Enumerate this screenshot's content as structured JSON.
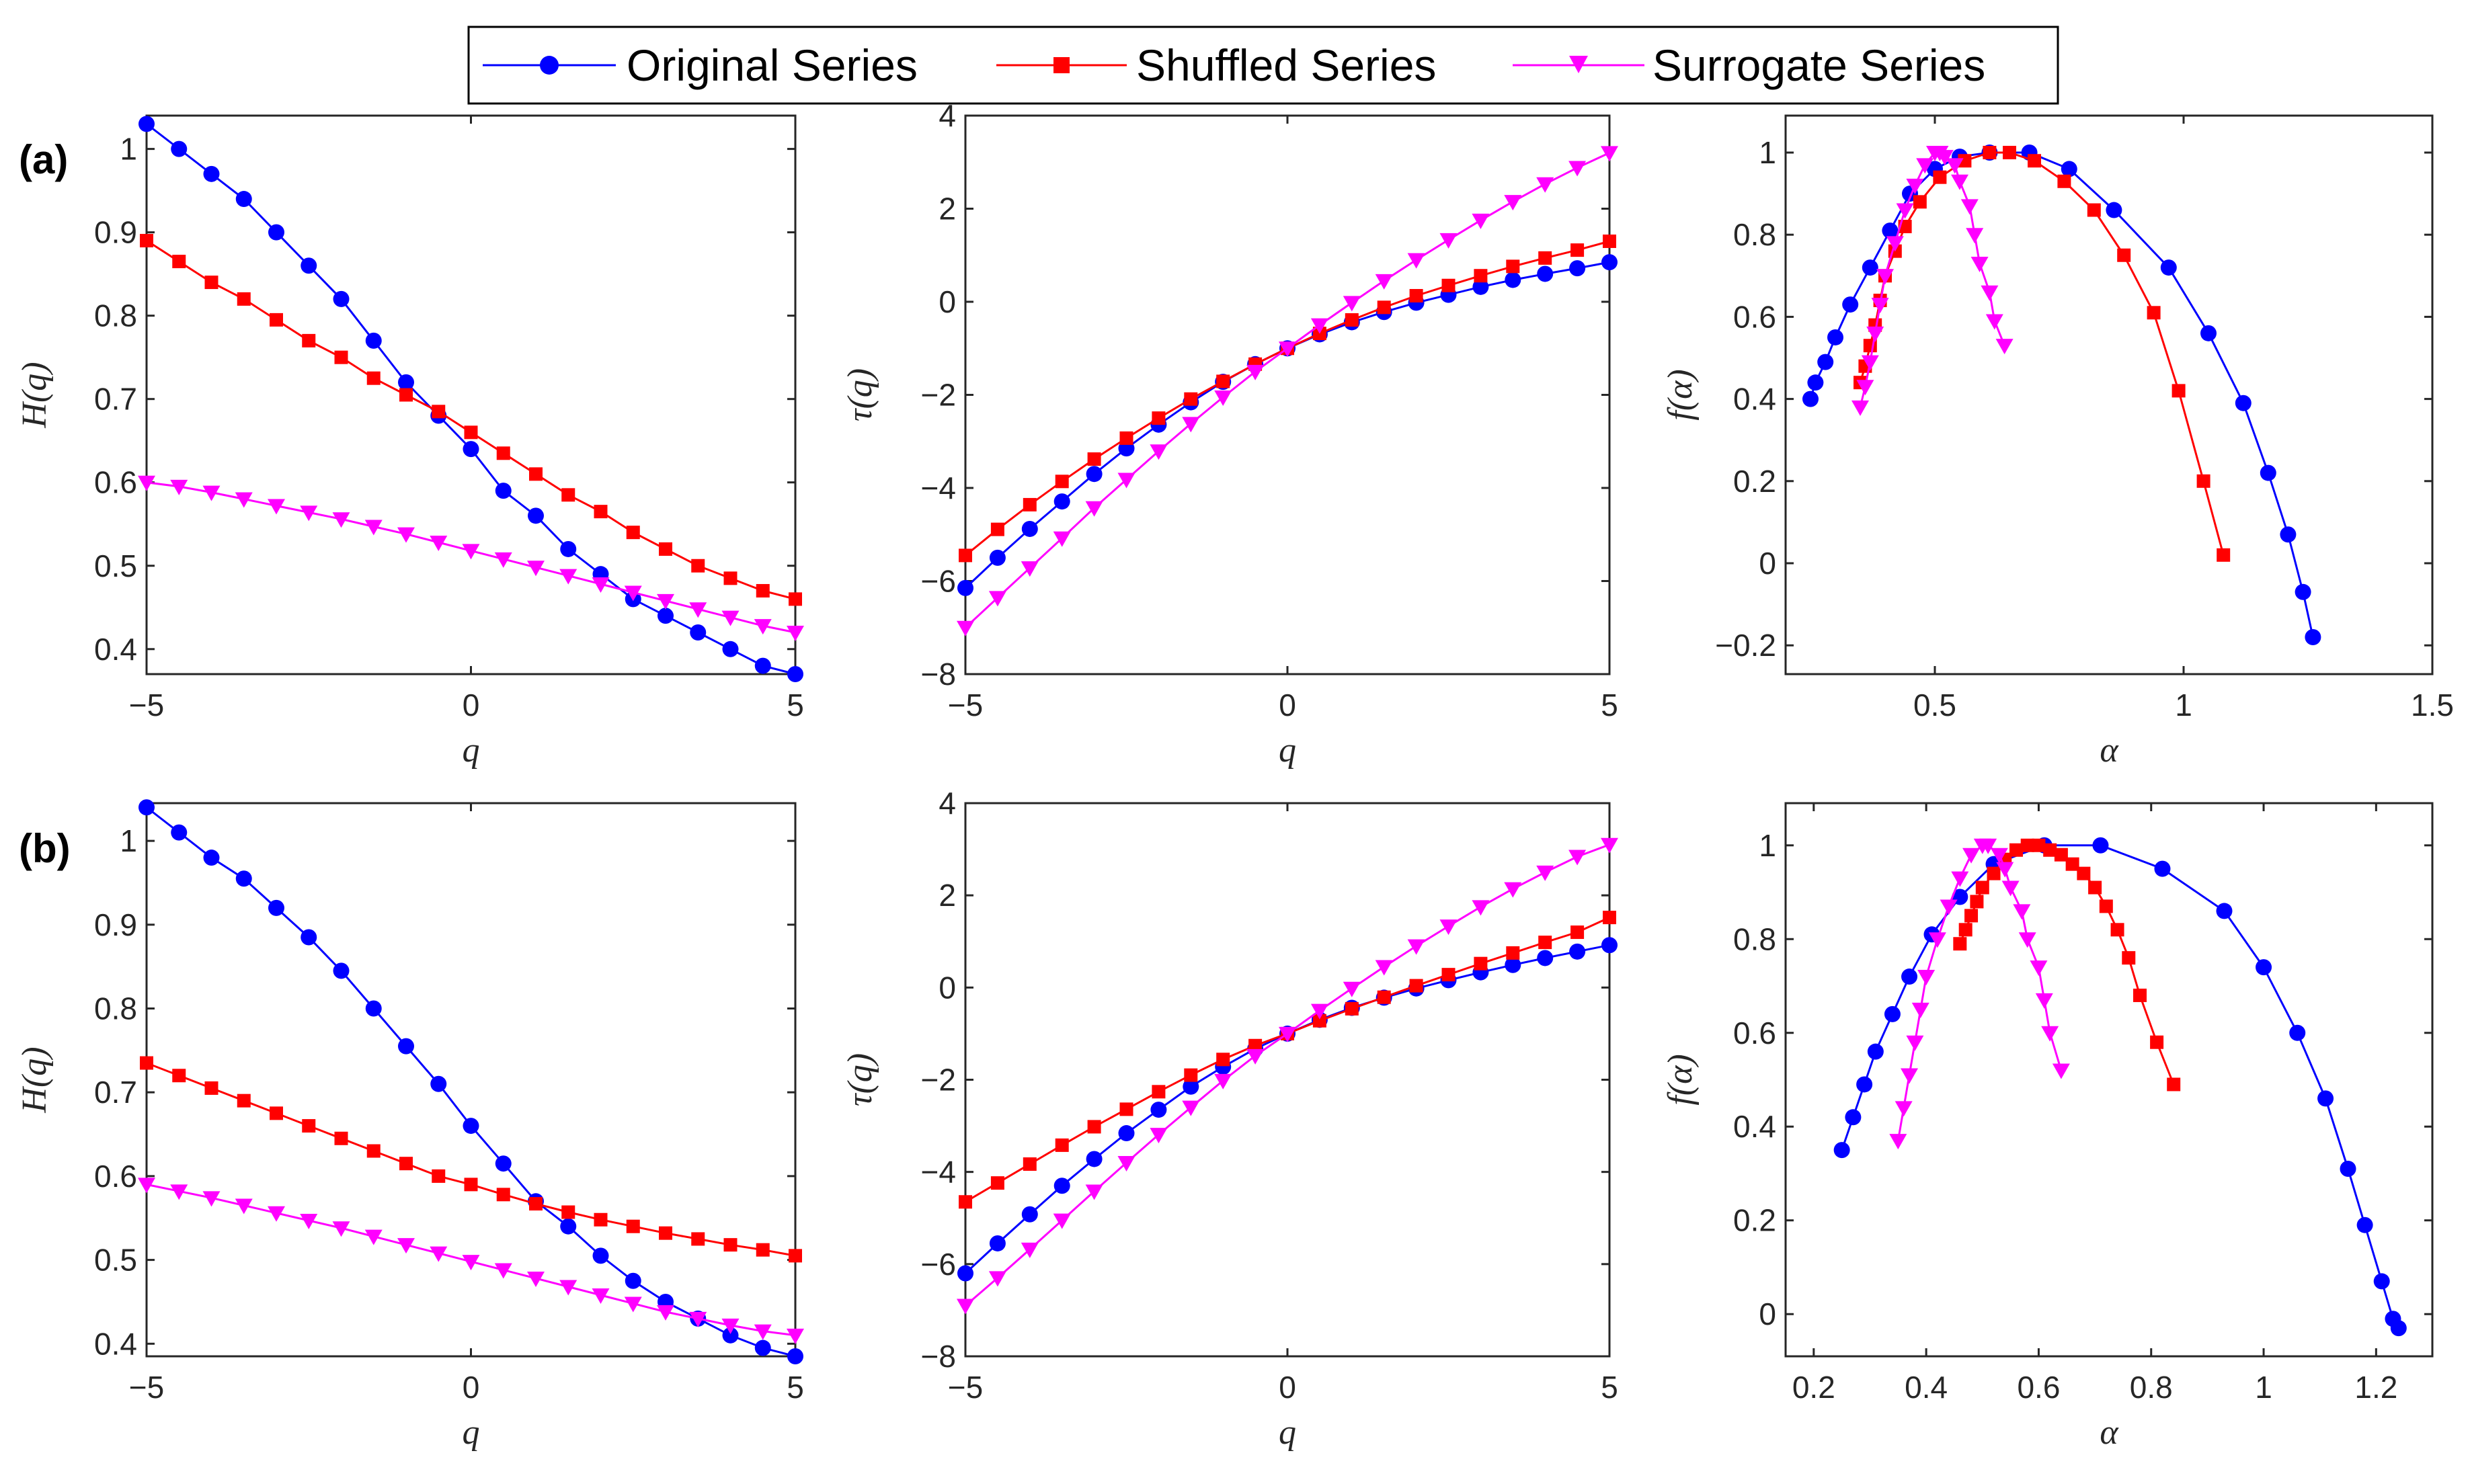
{
  "legend": {
    "placement": "top-center",
    "entries": [
      {
        "label": "Original Series",
        "color": "#0000ff",
        "marker": "circle"
      },
      {
        "label": "Shuffled Series",
        "color": "#ff0000",
        "marker": "square"
      },
      {
        "label": "Surrogate Series",
        "color": "#ff00ff",
        "marker": "triangle-down"
      }
    ]
  },
  "panel_labels": [
    "(a)",
    "(b)"
  ],
  "chart_data": [
    {
      "id": "a-H",
      "row": 0,
      "col": 0,
      "type": "line",
      "xlabel": "q",
      "ylabel": "H(q)",
      "xlim": [
        -5,
        5
      ],
      "ylim": [
        0.37,
        1.04
      ],
      "xticks": [
        -5,
        0,
        5
      ],
      "xtick_labels": [
        "−5",
        "0",
        "5"
      ],
      "yticks": [
        0.4,
        0.5,
        0.6,
        0.7,
        0.8,
        0.9,
        1
      ],
      "ytick_labels": [
        "0.4",
        "0.5",
        "0.6",
        "0.7",
        "0.8",
        "0.9",
        "1"
      ],
      "grid": false,
      "series": [
        {
          "name": "Original Series",
          "x": [
            -5,
            -4.5,
            -4,
            -3.5,
            -3,
            -2.5,
            -2,
            -1.5,
            -1,
            -0.5,
            0,
            0.5,
            1,
            1.5,
            2,
            2.5,
            3,
            3.5,
            4,
            4.5,
            5
          ],
          "y": [
            1.03,
            1.0,
            0.97,
            0.94,
            0.9,
            0.86,
            0.82,
            0.77,
            0.72,
            0.68,
            0.64,
            0.59,
            0.56,
            0.52,
            0.49,
            0.46,
            0.44,
            0.42,
            0.4,
            0.38,
            0.37
          ]
        },
        {
          "name": "Shuffled Series",
          "x": [
            -5,
            -4.5,
            -4,
            -3.5,
            -3,
            -2.5,
            -2,
            -1.5,
            -1,
            -0.5,
            0,
            0.5,
            1,
            1.5,
            2,
            2.5,
            3,
            3.5,
            4,
            4.5,
            5
          ],
          "y": [
            0.89,
            0.865,
            0.84,
            0.82,
            0.795,
            0.77,
            0.75,
            0.725,
            0.705,
            0.685,
            0.66,
            0.635,
            0.61,
            0.585,
            0.565,
            0.54,
            0.52,
            0.5,
            0.485,
            0.47,
            0.46
          ]
        },
        {
          "name": "Surrogate Series",
          "x": [
            -5,
            -4.5,
            -4,
            -3.5,
            -3,
            -2.5,
            -2,
            -1.5,
            -1,
            -0.5,
            0,
            0.5,
            1,
            1.5,
            2,
            2.5,
            3,
            3.5,
            4,
            4.5,
            5
          ],
          "y": [
            0.6,
            0.595,
            0.588,
            0.58,
            0.572,
            0.564,
            0.556,
            0.547,
            0.538,
            0.528,
            0.518,
            0.508,
            0.498,
            0.488,
            0.478,
            0.468,
            0.458,
            0.448,
            0.438,
            0.428,
            0.42
          ]
        }
      ]
    },
    {
      "id": "a-tau",
      "row": 0,
      "col": 1,
      "type": "line",
      "xlabel": "q",
      "ylabel": "τ(q)",
      "xlim": [
        -5,
        5
      ],
      "ylim": [
        -8,
        4
      ],
      "xticks": [
        -5,
        0,
        5
      ],
      "xtick_labels": [
        "−5",
        "0",
        "5"
      ],
      "yticks": [
        -8,
        -6,
        -4,
        -2,
        0,
        2,
        4
      ],
      "ytick_labels": [
        "−8",
        "−6",
        "−4",
        "−2",
        "0",
        "2",
        "4"
      ],
      "grid": false,
      "series": [
        {
          "name": "Original Series",
          "x": [
            -5,
            -4.5,
            -4,
            -3.5,
            -3,
            -2.5,
            -2,
            -1.5,
            -1,
            -0.5,
            0,
            0.5,
            1,
            1.5,
            2,
            2.5,
            3,
            3.5,
            4,
            4.5,
            5
          ],
          "y": [
            -6.15,
            -5.5,
            -4.88,
            -4.29,
            -3.7,
            -3.15,
            -2.64,
            -2.16,
            -1.72,
            -1.34,
            -1.0,
            -0.7,
            -0.44,
            -0.22,
            -0.02,
            0.15,
            0.32,
            0.47,
            0.6,
            0.72,
            0.85
          ]
        },
        {
          "name": "Shuffled Series",
          "x": [
            -5,
            -4.5,
            -4,
            -3.5,
            -3,
            -2.5,
            -2,
            -1.5,
            -1,
            -0.5,
            0,
            0.5,
            1,
            1.5,
            2,
            2.5,
            3,
            3.5,
            4,
            4.5,
            5
          ],
          "y": [
            -5.45,
            -4.89,
            -4.36,
            -3.86,
            -3.38,
            -2.93,
            -2.5,
            -2.09,
            -1.71,
            -1.34,
            -1.0,
            -0.68,
            -0.39,
            -0.12,
            0.13,
            0.35,
            0.56,
            0.76,
            0.94,
            1.11,
            1.3
          ]
        },
        {
          "name": "Surrogate Series",
          "x": [
            -5,
            -4.5,
            -4,
            -3.5,
            -3,
            -2.5,
            -2,
            -1.5,
            -1,
            -0.5,
            0,
            0.5,
            1,
            1.5,
            2,
            2.5,
            3,
            3.5,
            4,
            4.5,
            5
          ],
          "y": [
            -7.0,
            -6.36,
            -5.72,
            -5.08,
            -4.43,
            -3.82,
            -3.21,
            -2.62,
            -2.05,
            -1.5,
            -1.0,
            -0.5,
            -0.02,
            0.45,
            0.9,
            1.33,
            1.75,
            2.15,
            2.53,
            2.88,
            3.2
          ]
        }
      ]
    },
    {
      "id": "a-f",
      "row": 0,
      "col": 2,
      "type": "line",
      "xlabel": "α",
      "ylabel": "f(α)",
      "xlim": [
        0.2,
        1.5
      ],
      "ylim": [
        -0.27,
        1.09
      ],
      "xticks": [
        0.5,
        1,
        1.5
      ],
      "xtick_labels": [
        "0.5",
        "1",
        "1.5"
      ],
      "yticks": [
        -0.2,
        0,
        0.2,
        0.4,
        0.6,
        0.8,
        1
      ],
      "ytick_labels": [
        "−0.2",
        "0",
        "0.2",
        "0.4",
        "0.6",
        "0.8",
        "1"
      ],
      "grid": false,
      "series": [
        {
          "name": "Original Series",
          "x": [
            0.25,
            0.26,
            0.28,
            0.3,
            0.33,
            0.37,
            0.41,
            0.45,
            0.5,
            0.55,
            0.61,
            0.69,
            0.77,
            0.86,
            0.97,
            1.05,
            1.12,
            1.17,
            1.21,
            1.24,
            1.26
          ],
          "y": [
            0.4,
            0.44,
            0.49,
            0.55,
            0.63,
            0.72,
            0.81,
            0.9,
            0.96,
            0.99,
            1.0,
            1.0,
            0.96,
            0.86,
            0.72,
            0.56,
            0.39,
            0.22,
            0.07,
            -0.07,
            -0.18
          ]
        },
        {
          "name": "Shuffled Series",
          "x": [
            0.35,
            0.36,
            0.37,
            0.38,
            0.39,
            0.4,
            0.42,
            0.44,
            0.47,
            0.51,
            0.56,
            0.61,
            0.65,
            0.7,
            0.76,
            0.82,
            0.88,
            0.94,
            0.99,
            1.04,
            1.08
          ],
          "y": [
            0.44,
            0.48,
            0.53,
            0.58,
            0.64,
            0.7,
            0.76,
            0.82,
            0.88,
            0.94,
            0.98,
            1.0,
            1.0,
            0.98,
            0.93,
            0.86,
            0.75,
            0.61,
            0.42,
            0.2,
            0.02
          ]
        },
        {
          "name": "Surrogate Series",
          "x": [
            0.35,
            0.36,
            0.37,
            0.38,
            0.39,
            0.4,
            0.42,
            0.44,
            0.46,
            0.48,
            0.5,
            0.51,
            0.52,
            0.54,
            0.55,
            0.57,
            0.58,
            0.59,
            0.61,
            0.62,
            0.64
          ],
          "y": [
            0.38,
            0.43,
            0.49,
            0.56,
            0.63,
            0.7,
            0.78,
            0.86,
            0.92,
            0.97,
            1.0,
            1.0,
            0.99,
            0.97,
            0.93,
            0.87,
            0.8,
            0.73,
            0.66,
            0.59,
            0.53
          ]
        }
      ]
    },
    {
      "id": "b-H",
      "row": 1,
      "col": 0,
      "type": "line",
      "xlabel": "q",
      "ylabel": "H(q)",
      "xlim": [
        -5,
        5
      ],
      "ylim": [
        0.385,
        1.045
      ],
      "xticks": [
        -5,
        0,
        5
      ],
      "xtick_labels": [
        "−5",
        "0",
        "5"
      ],
      "yticks": [
        0.4,
        0.5,
        0.6,
        0.7,
        0.8,
        0.9,
        1
      ],
      "ytick_labels": [
        "0.4",
        "0.5",
        "0.6",
        "0.7",
        "0.8",
        "0.9",
        "1"
      ],
      "grid": false,
      "series": [
        {
          "name": "Original Series",
          "x": [
            -5,
            -4.5,
            -4,
            -3.5,
            -3,
            -2.5,
            -2,
            -1.5,
            -1,
            -0.5,
            0,
            0.5,
            1,
            1.5,
            2,
            2.5,
            3,
            3.5,
            4,
            4.5,
            5
          ],
          "y": [
            1.04,
            1.01,
            0.98,
            0.955,
            0.92,
            0.885,
            0.845,
            0.8,
            0.755,
            0.71,
            0.66,
            0.615,
            0.57,
            0.54,
            0.505,
            0.475,
            0.45,
            0.43,
            0.41,
            0.395,
            0.385
          ]
        },
        {
          "name": "Shuffled Series",
          "x": [
            -5,
            -4.5,
            -4,
            -3.5,
            -3,
            -2.5,
            -2,
            -1.5,
            -1,
            -0.5,
            0,
            0.5,
            1,
            1.5,
            2,
            2.5,
            3,
            3.5,
            4,
            4.5,
            5
          ],
          "y": [
            0.735,
            0.72,
            0.705,
            0.69,
            0.675,
            0.66,
            0.645,
            0.63,
            0.615,
            0.6,
            0.59,
            0.578,
            0.567,
            0.557,
            0.548,
            0.54,
            0.532,
            0.525,
            0.518,
            0.512,
            0.505
          ]
        },
        {
          "name": "Surrogate Series",
          "x": [
            -5,
            -4.5,
            -4,
            -3.5,
            -3,
            -2.5,
            -2,
            -1.5,
            -1,
            -0.5,
            0,
            0.5,
            1,
            1.5,
            2,
            2.5,
            3,
            3.5,
            4,
            4.5,
            5
          ],
          "y": [
            0.59,
            0.582,
            0.574,
            0.565,
            0.556,
            0.547,
            0.538,
            0.528,
            0.518,
            0.508,
            0.498,
            0.488,
            0.478,
            0.468,
            0.458,
            0.448,
            0.438,
            0.43,
            0.422,
            0.415,
            0.41
          ]
        }
      ]
    },
    {
      "id": "b-tau",
      "row": 1,
      "col": 1,
      "type": "line",
      "xlabel": "q",
      "ylabel": "τ(q)",
      "xlim": [
        -5,
        5
      ],
      "ylim": [
        -8,
        4
      ],
      "xticks": [
        -5,
        0,
        5
      ],
      "xtick_labels": [
        "−5",
        "0",
        "5"
      ],
      "yticks": [
        -8,
        -6,
        -4,
        -2,
        0,
        2,
        4
      ],
      "ytick_labels": [
        "−8",
        "−6",
        "−4",
        "−2",
        "0",
        "2",
        "4"
      ],
      "grid": false,
      "series": [
        {
          "name": "Original Series",
          "x": [
            -5,
            -4.5,
            -4,
            -3.5,
            -3,
            -2.5,
            -2,
            -1.5,
            -1,
            -0.5,
            0,
            0.5,
            1,
            1.5,
            2,
            2.5,
            3,
            3.5,
            4,
            4.5,
            5
          ],
          "y": [
            -6.2,
            -5.55,
            -4.92,
            -4.3,
            -3.72,
            -3.16,
            -2.65,
            -2.15,
            -1.72,
            -1.33,
            -1.0,
            -0.7,
            -0.44,
            -0.22,
            -0.02,
            0.16,
            0.33,
            0.49,
            0.64,
            0.78,
            0.92
          ]
        },
        {
          "name": "Shuffled Series",
          "x": [
            -5,
            -4.5,
            -4,
            -3.5,
            -3,
            -2.5,
            -2,
            -1.5,
            -1,
            -0.5,
            0,
            0.5,
            1,
            1.5,
            2,
            2.5,
            3,
            3.5,
            4,
            4.5,
            5
          ],
          "y": [
            -4.65,
            -4.24,
            -3.83,
            -3.42,
            -3.02,
            -2.64,
            -2.26,
            -1.9,
            -1.56,
            -1.26,
            -1.0,
            -0.72,
            -0.46,
            -0.21,
            0.04,
            0.28,
            0.52,
            0.75,
            0.98,
            1.2,
            1.52
          ]
        },
        {
          "name": "Surrogate Series",
          "x": [
            -5,
            -4.5,
            -4,
            -3.5,
            -3,
            -2.5,
            -2,
            -1.5,
            -1,
            -0.5,
            0,
            0.5,
            1,
            1.5,
            2,
            2.5,
            3,
            3.5,
            4,
            4.5,
            5
          ],
          "y": [
            -6.9,
            -6.3,
            -5.68,
            -5.05,
            -4.42,
            -3.8,
            -3.19,
            -2.6,
            -2.02,
            -1.48,
            -1.0,
            -0.5,
            -0.02,
            0.45,
            0.9,
            1.33,
            1.75,
            2.14,
            2.5,
            2.84,
            3.1
          ]
        }
      ]
    },
    {
      "id": "b-f",
      "row": 1,
      "col": 2,
      "type": "line",
      "xlabel": "α",
      "ylabel": "f(α)",
      "xlim": [
        0.15,
        1.3
      ],
      "ylim": [
        -0.09,
        1.09
      ],
      "xticks": [
        0.2,
        0.4,
        0.6,
        0.8,
        1,
        1.2
      ],
      "xtick_labels": [
        "0.2",
        "0.4",
        "0.6",
        "0.8",
        "1",
        "1.2"
      ],
      "yticks": [
        0,
        0.2,
        0.4,
        0.6,
        0.8,
        1
      ],
      "ytick_labels": [
        "0",
        "0.2",
        "0.4",
        "0.6",
        "0.8",
        "1"
      ],
      "grid": false,
      "series": [
        {
          "name": "Original Series",
          "x": [
            0.25,
            0.27,
            0.29,
            0.31,
            0.34,
            0.37,
            0.41,
            0.46,
            0.52,
            0.61,
            0.71,
            0.82,
            0.93,
            1.0,
            1.06,
            1.11,
            1.15,
            1.18,
            1.21,
            1.23,
            1.24
          ],
          "y": [
            0.35,
            0.42,
            0.49,
            0.56,
            0.64,
            0.72,
            0.81,
            0.89,
            0.96,
            1.0,
            1.0,
            0.95,
            0.86,
            0.74,
            0.6,
            0.46,
            0.31,
            0.19,
            0.07,
            -0.01,
            -0.03
          ]
        },
        {
          "name": "Shuffled Series",
          "x": [
            0.46,
            0.47,
            0.48,
            0.49,
            0.5,
            0.52,
            0.54,
            0.56,
            0.58,
            0.6,
            0.62,
            0.64,
            0.66,
            0.68,
            0.7,
            0.72,
            0.74,
            0.76,
            0.78,
            0.81,
            0.84
          ],
          "y": [
            0.79,
            0.82,
            0.85,
            0.88,
            0.91,
            0.94,
            0.97,
            0.99,
            1.0,
            1.0,
            0.99,
            0.98,
            0.96,
            0.94,
            0.91,
            0.87,
            0.82,
            0.76,
            0.68,
            0.58,
            0.49
          ]
        },
        {
          "name": "Surrogate Series",
          "x": [
            0.35,
            0.36,
            0.37,
            0.38,
            0.39,
            0.4,
            0.42,
            0.44,
            0.46,
            0.48,
            0.5,
            0.51,
            0.53,
            0.54,
            0.55,
            0.57,
            0.58,
            0.6,
            0.61,
            0.62,
            0.64
          ],
          "y": [
            0.37,
            0.44,
            0.51,
            0.58,
            0.65,
            0.72,
            0.8,
            0.87,
            0.93,
            0.98,
            1.0,
            1.0,
            0.98,
            0.95,
            0.91,
            0.86,
            0.8,
            0.74,
            0.67,
            0.6,
            0.52
          ]
        }
      ]
    }
  ]
}
